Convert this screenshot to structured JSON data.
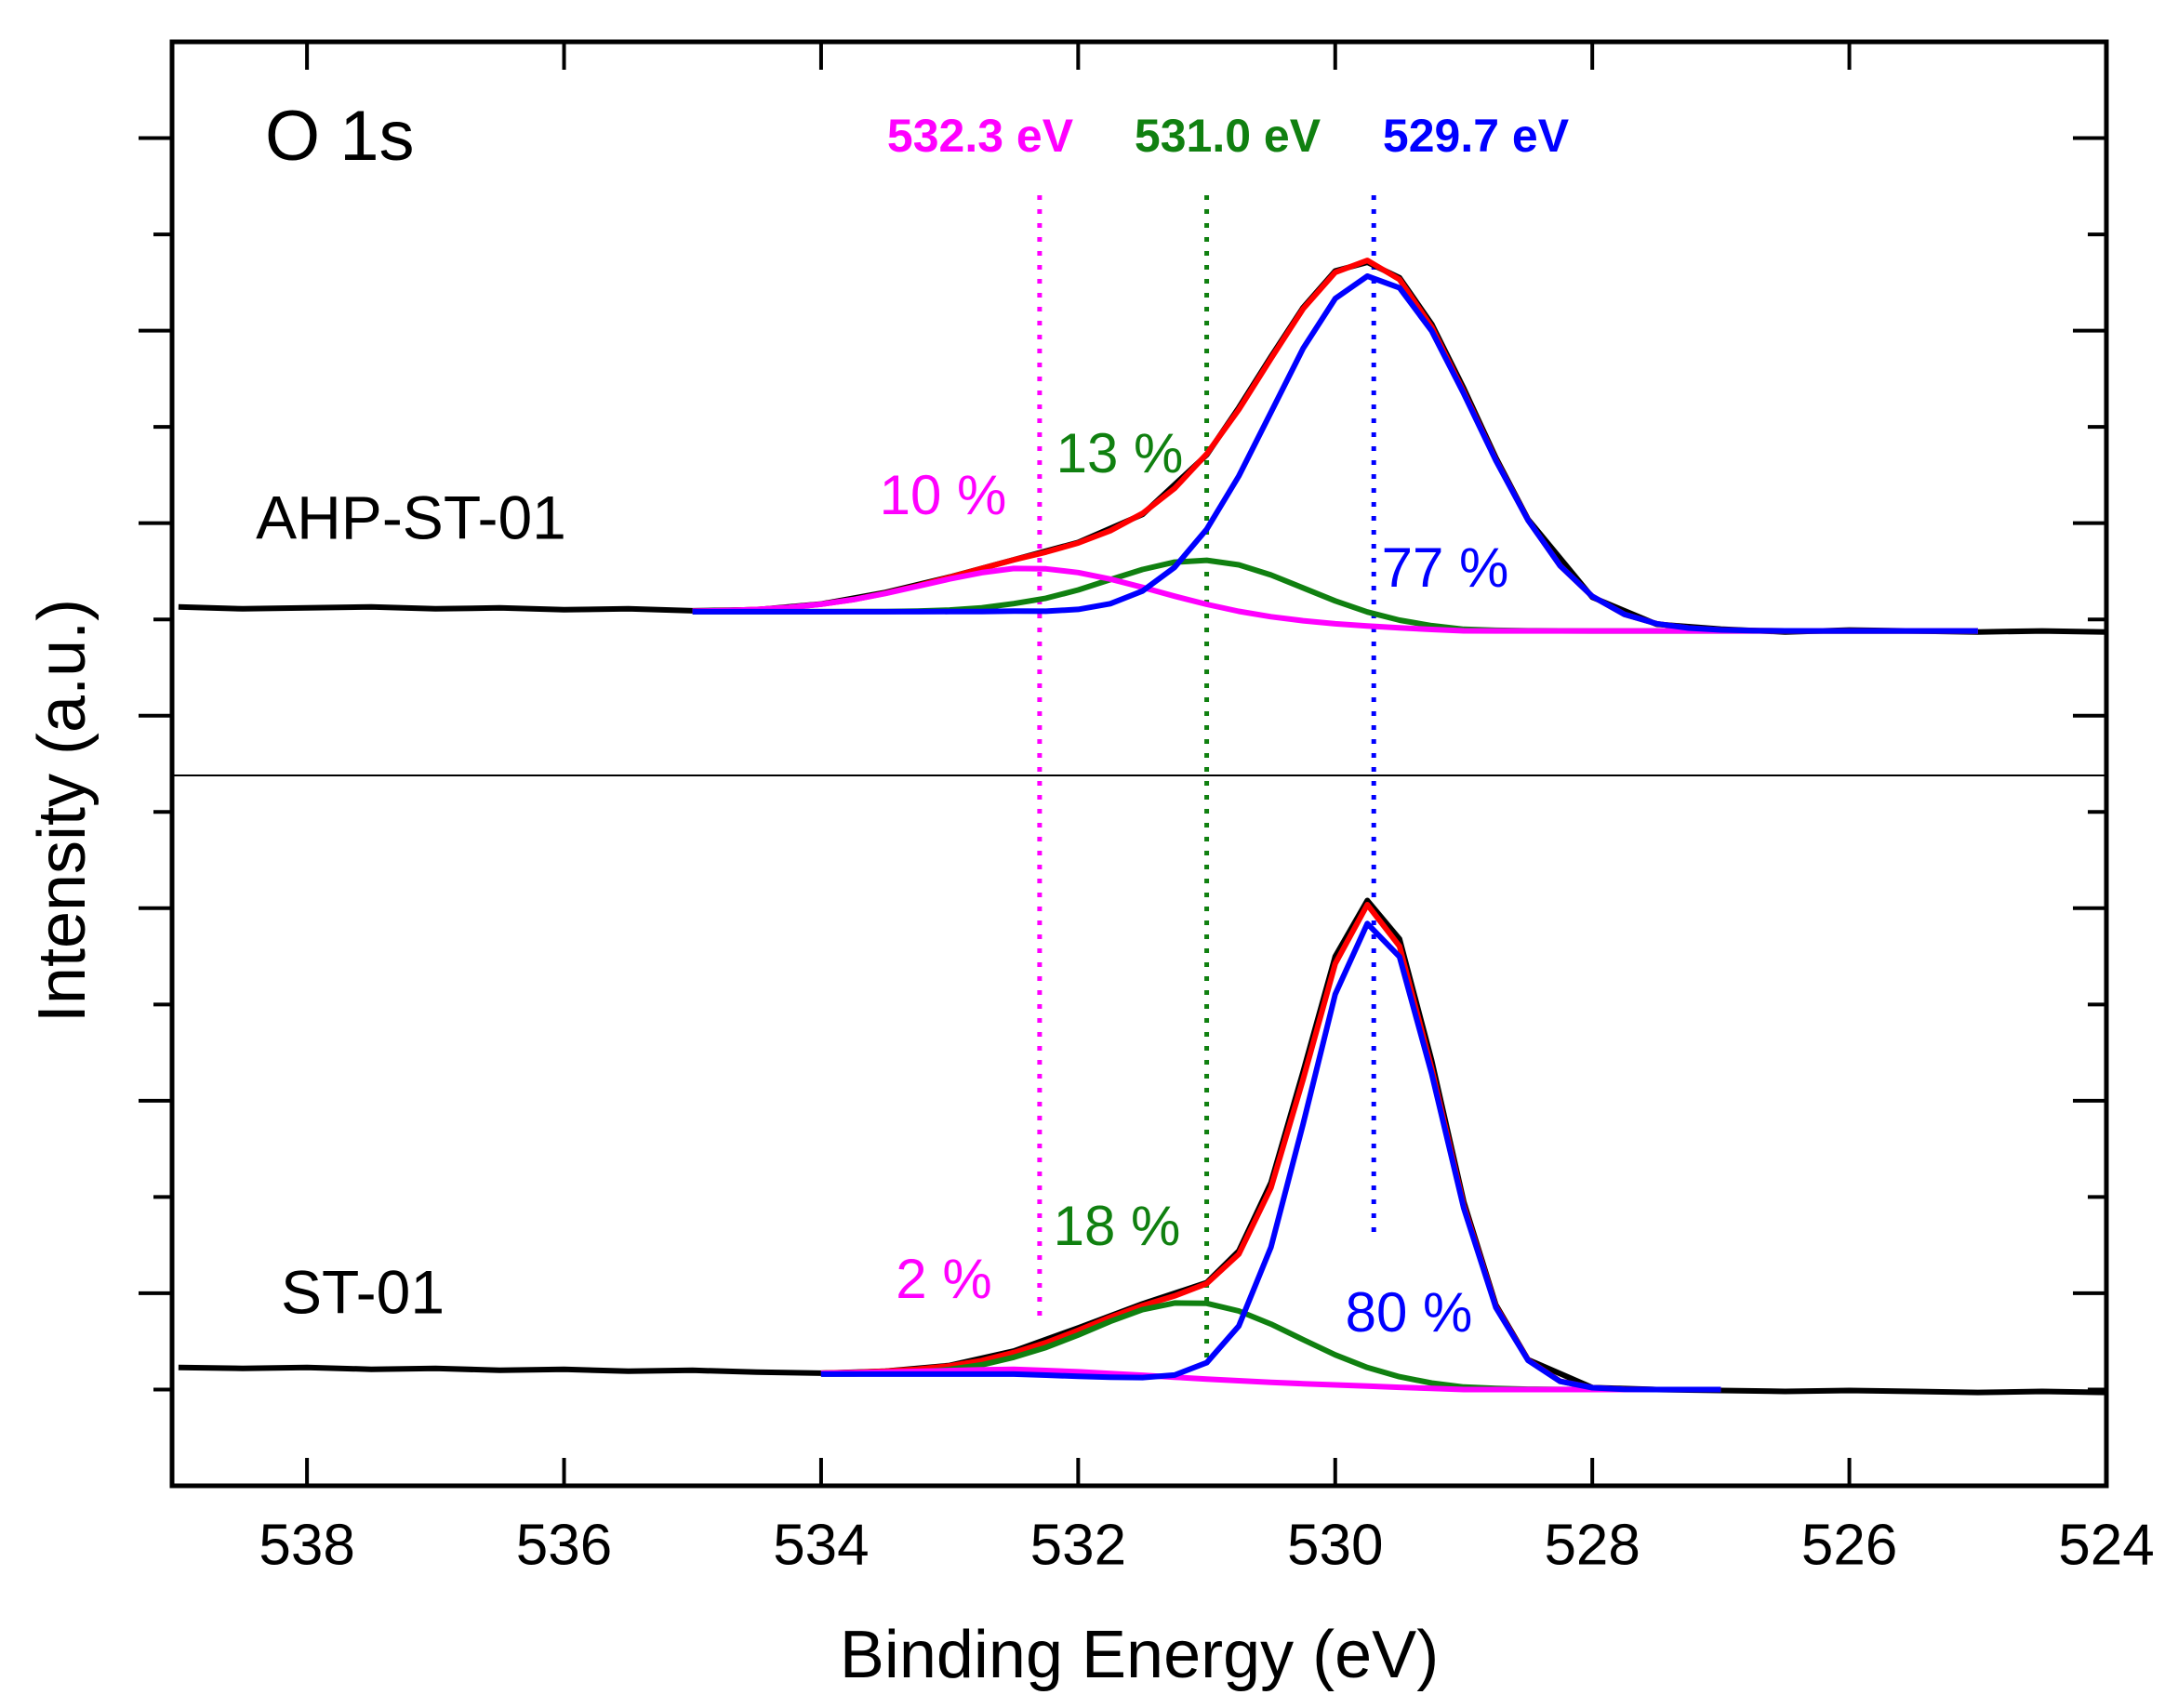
{
  "chart_data": {
    "type": "line",
    "title": "O 1s",
    "xlabel": "Binding Energy (eV)",
    "ylabel": "Intensity (a.u.)",
    "xlim": [
      539.05,
      524
    ],
    "xticks": [
      538,
      536,
      534,
      532,
      530,
      528,
      526,
      524
    ],
    "ylim": [
      0,
      15
    ],
    "yticks": [
      1,
      2,
      3,
      4,
      5,
      6,
      7,
      8,
      9,
      10,
      11,
      12,
      13,
      14
    ],
    "peaks": [
      {
        "value": 532.3,
        "label": "532.3 eV",
        "color": "#ff00ff"
      },
      {
        "value": 531.0,
        "label": "531.0 eV",
        "color": "#108010"
      },
      {
        "value": 529.7,
        "label": "529.7 eV",
        "color": "#0000ff"
      }
    ],
    "spectra": [
      {
        "label": "AHP-ST-01",
        "percentages": [
          {
            "value": 10,
            "label": "10 %"
          },
          {
            "value": 13,
            "label": "13 %"
          },
          {
            "value": 77,
            "label": "77 %"
          }
        ],
        "curves": [
          {
            "color": "#000000",
            "x": [
              539,
              538.5,
              538,
              537.5,
              537,
              536.5,
              536,
              535.5,
              535,
              534.5,
              534,
              533.5,
              533,
              532.5,
              532,
              531.5,
              531,
              530.75,
              530.5,
              530.25,
              530,
              529.75,
              529.5,
              529.25,
              529,
              528.75,
              528.5,
              528,
              527.5,
              527,
              526.5,
              526,
              525.5,
              525,
              524.5,
              524
            ],
            "values": [
              9.13,
              9.11,
              9.12,
              9.13,
              9.11,
              9.12,
              9.1,
              9.11,
              9.09,
              9.1,
              9.16,
              9.28,
              9.44,
              9.62,
              9.8,
              10.09,
              10.71,
              11.2,
              11.73,
              12.24,
              12.62,
              12.71,
              12.55,
              12.07,
              11.4,
              10.68,
              10.04,
              9.23,
              8.95,
              8.9,
              8.87,
              8.89,
              8.88,
              8.87,
              8.88,
              8.87
            ]
          },
          {
            "color": "#ff0000",
            "x": [
              535,
              534.75,
              534.5,
              534.25,
              534,
              533.75,
              533.5,
              533.25,
              533,
              532.75,
              532.5,
              532.25,
              532,
              531.75,
              531.5,
              531.25,
              531,
              530.75,
              530.5,
              530.25,
              530,
              529.75,
              529.5,
              529.25,
              529,
              528.75,
              528.5,
              528.25,
              528,
              527.75,
              527.5,
              527.25,
              527,
              526.75,
              526.5,
              526.25,
              526,
              525.75,
              525.5,
              525.25,
              525
            ],
            "values": [
              9.085,
              9.091,
              9.103,
              9.124,
              9.158,
              9.206,
              9.271,
              9.35,
              9.438,
              9.529,
              9.619,
              9.699,
              9.794,
              9.921,
              10.101,
              10.361,
              10.719,
              11.18,
              11.71,
              12.226,
              12.606,
              12.729,
              12.531,
              12.04,
              11.363,
              10.658,
              10.033,
              9.558,
              9.24,
              9.053,
              8.956,
              8.91,
              8.891,
              8.883,
              8.881,
              8.88,
              8.88,
              8.88,
              8.88,
              8.88,
              8.88
            ]
          },
          {
            "color": "#108010",
            "x": [
              535,
              534.75,
              534.5,
              534.25,
              534,
              533.75,
              533.5,
              533.25,
              533,
              532.75,
              532.5,
              532.25,
              532,
              531.75,
              531.5,
              531.25,
              531,
              530.75,
              530.5,
              530.25,
              530,
              529.75,
              529.5,
              529.25,
              529,
              528.75,
              528.5,
              528.25,
              528,
              527.75,
              527.5,
              527.25,
              527,
              526.75,
              526.5,
              526.25,
              526,
              525.75,
              525.5,
              525.25,
              525
            ],
            "values": [
              9.08,
              9.08,
              9.08,
              9.08,
              9.08,
              9.081,
              9.082,
              9.087,
              9.098,
              9.121,
              9.164,
              9.22,
              9.306,
              9.413,
              9.519,
              9.595,
              9.614,
              9.567,
              9.462,
              9.327,
              9.192,
              9.077,
              8.992,
              8.935,
              8.898,
              8.887,
              8.882,
              8.881,
              8.88,
              8.88,
              8.88,
              8.88,
              8.88,
              8.88,
              8.88,
              8.88,
              8.88,
              8.88,
              8.88,
              8.88,
              8.88
            ]
          },
          {
            "color": "#ff00ff",
            "x": [
              535,
              534.75,
              534.5,
              534.25,
              534,
              533.75,
              533.5,
              533.25,
              533,
              532.75,
              532.5,
              532.25,
              532,
              531.75,
              531.5,
              531.25,
              531,
              530.75,
              530.5,
              530.25,
              530,
              529.75,
              529.5,
              529.25,
              529,
              528.75,
              528.5,
              528.25,
              528,
              527.75,
              527.5,
              527.25,
              527,
              526.75,
              526.5,
              526.25,
              526,
              525.75,
              525.5,
              525.25,
              525
            ],
            "values": [
              9.085,
              9.091,
              9.103,
              9.124,
              9.157,
              9.206,
              9.269,
              9.344,
              9.42,
              9.486,
              9.529,
              9.525,
              9.487,
              9.419,
              9.333,
              9.241,
              9.156,
              9.084,
              9.028,
              8.986,
              8.955,
              8.931,
              8.912,
              8.896,
              8.881,
              8.88,
              8.88,
              8.88,
              8.88,
              8.88,
              8.88,
              8.88,
              8.88,
              8.88,
              8.88,
              8.88,
              8.88,
              8.88,
              8.88,
              8.88,
              8.88
            ]
          },
          {
            "color": "#0000ff",
            "x": [
              535,
              534.75,
              534.5,
              534.25,
              534,
              533.75,
              533.5,
              533.25,
              533,
              532.75,
              532.5,
              532.25,
              532,
              531.75,
              531.5,
              531.25,
              531,
              530.75,
              530.5,
              530.25,
              530,
              529.75,
              529.5,
              529.25,
              529,
              528.75,
              528.5,
              528.25,
              528,
              527.75,
              527.5,
              527.25,
              527,
              526.75,
              526.5,
              526.25,
              526,
              525.75,
              525.5,
              525.25,
              525
            ],
            "values": [
              9.08,
              9.08,
              9.08,
              9.08,
              9.08,
              9.08,
              9.08,
              9.08,
              9.081,
              9.082,
              9.087,
              9.085,
              9.104,
              9.163,
              9.295,
              9.541,
              9.937,
              10.489,
              11.152,
              11.815,
              12.333,
              12.566,
              12.444,
              11.998,
              11.345,
              10.651,
              10.031,
              9.557,
              9.24,
              9.053,
              8.956,
              8.91,
              8.891,
              8.883,
              8.881,
              8.88,
              8.88,
              8.88,
              8.88,
              8.88,
              8.88
            ]
          }
        ]
      },
      {
        "label": "ST-01",
        "percentages": [
          {
            "value": 2,
            "label": "2 %"
          },
          {
            "value": 18,
            "label": "18 %"
          },
          {
            "value": 80,
            "label": "80 %"
          }
        ],
        "curves": [
          {
            "color": "#000000",
            "x": [
              539,
              538.5,
              538,
              537.5,
              537,
              536.5,
              536,
              535.5,
              535,
              534.5,
              534,
              533.5,
              533,
              532.5,
              532,
              531.5,
              531,
              530.75,
              530.5,
              530.25,
              530,
              529.75,
              529.5,
              529.25,
              529,
              528.75,
              528.5,
              528,
              527.5,
              527,
              526.5,
              526,
              525.5,
              525,
              524.5,
              524
            ],
            "values": [
              1.23,
              1.22,
              1.23,
              1.21,
              1.22,
              1.2,
              1.21,
              1.19,
              1.2,
              1.18,
              1.17,
              1.19,
              1.25,
              1.4,
              1.64,
              1.89,
              2.11,
              2.44,
              3.15,
              4.3,
              5.5,
              6.08,
              5.68,
              4.42,
              2.95,
              1.88,
              1.31,
              1.02,
              1.0,
              0.99,
              0.98,
              0.99,
              0.98,
              0.97,
              0.98,
              0.97
            ]
          },
          {
            "color": "#ff0000",
            "x": [
              534,
              533.75,
              533.5,
              533.25,
              533,
              532.75,
              532.5,
              532.25,
              532,
              531.75,
              531.5,
              531.25,
              531,
              530.75,
              530.5,
              530.25,
              530,
              529.75,
              529.5,
              529.25,
              529,
              528.75,
              528.5,
              528.25,
              528,
              527.75,
              527.5,
              527.25,
              527
            ],
            "values": [
              1.17,
              1.177,
              1.19,
              1.211,
              1.245,
              1.301,
              1.384,
              1.487,
              1.615,
              1.751,
              1.872,
              1.972,
              2.1,
              2.407,
              3.097,
              4.221,
              5.424,
              6.037,
              5.605,
              4.339,
              2.909,
              1.862,
              1.307,
              1.086,
              1.019,
              1.003,
              1.0,
              1.0,
              1.0
            ]
          },
          {
            "color": "#108010",
            "x": [
              534,
              533.75,
              533.5,
              533.25,
              533,
              532.75,
              532.5,
              532.25,
              532,
              531.75,
              531.5,
              531.25,
              531,
              530.75,
              530.5,
              530.25,
              530,
              529.75,
              529.5,
              529.25,
              529,
              528.75,
              528.5,
              528.25,
              528,
              527.75,
              527.5,
              527.25,
              527
            ],
            "values": [
              1.161,
              1.163,
              1.169,
              1.182,
              1.208,
              1.257,
              1.335,
              1.437,
              1.567,
              1.708,
              1.829,
              1.899,
              1.895,
              1.816,
              1.68,
              1.518,
              1.36,
              1.229,
              1.133,
              1.067,
              1.026,
              1.011,
              1.004,
              1.001,
              1.0,
              1.0,
              1.0,
              1.0,
              1.0
            ]
          },
          {
            "color": "#ff00ff",
            "x": [
              534,
              533.75,
              533.5,
              533.25,
              533,
              532.75,
              532.5,
              532.25,
              532,
              531.75,
              531.5,
              531.25,
              531,
              530.75,
              530.5,
              530.25,
              530,
              529.75,
              529.5,
              529.25,
              529,
              528.75,
              528.5,
              528.25,
              528,
              527.75,
              527.5,
              527.25,
              527
            ],
            "values": [
              1.168,
              1.174,
              1.181,
              1.189,
              1.197,
              1.204,
              1.209,
              1.198,
              1.184,
              1.167,
              1.148,
              1.128,
              1.109,
              1.091,
              1.075,
              1.061,
              1.048,
              1.035,
              1.023,
              1.011,
              1.0,
              1.0,
              1.0,
              1.0,
              1.0,
              1.0,
              1.0,
              1.0,
              1.0
            ]
          },
          {
            "color": "#0000ff",
            "x": [
              534,
              533.75,
              533.5,
              533.25,
              533,
              532.75,
              532.5,
              532.25,
              532,
              531.75,
              531.5,
              531.25,
              531,
              530.75,
              530.5,
              530.25,
              530,
              529.75,
              529.5,
              529.25,
              529,
              528.75,
              528.5,
              528.25,
              528,
              527.75,
              527.5,
              527.25,
              527
            ],
            "values": [
              1.16,
              1.16,
              1.16,
              1.16,
              1.16,
              1.16,
              1.16,
              1.149,
              1.137,
              1.127,
              1.124,
              1.15,
              1.279,
              1.66,
              2.479,
              3.757,
              5.108,
              5.841,
              5.495,
              4.283,
              2.883,
              1.852,
              1.303,
              1.085,
              1.019,
              1.003,
              1.0,
              1.0,
              1.0
            ]
          }
        ]
      }
    ]
  }
}
